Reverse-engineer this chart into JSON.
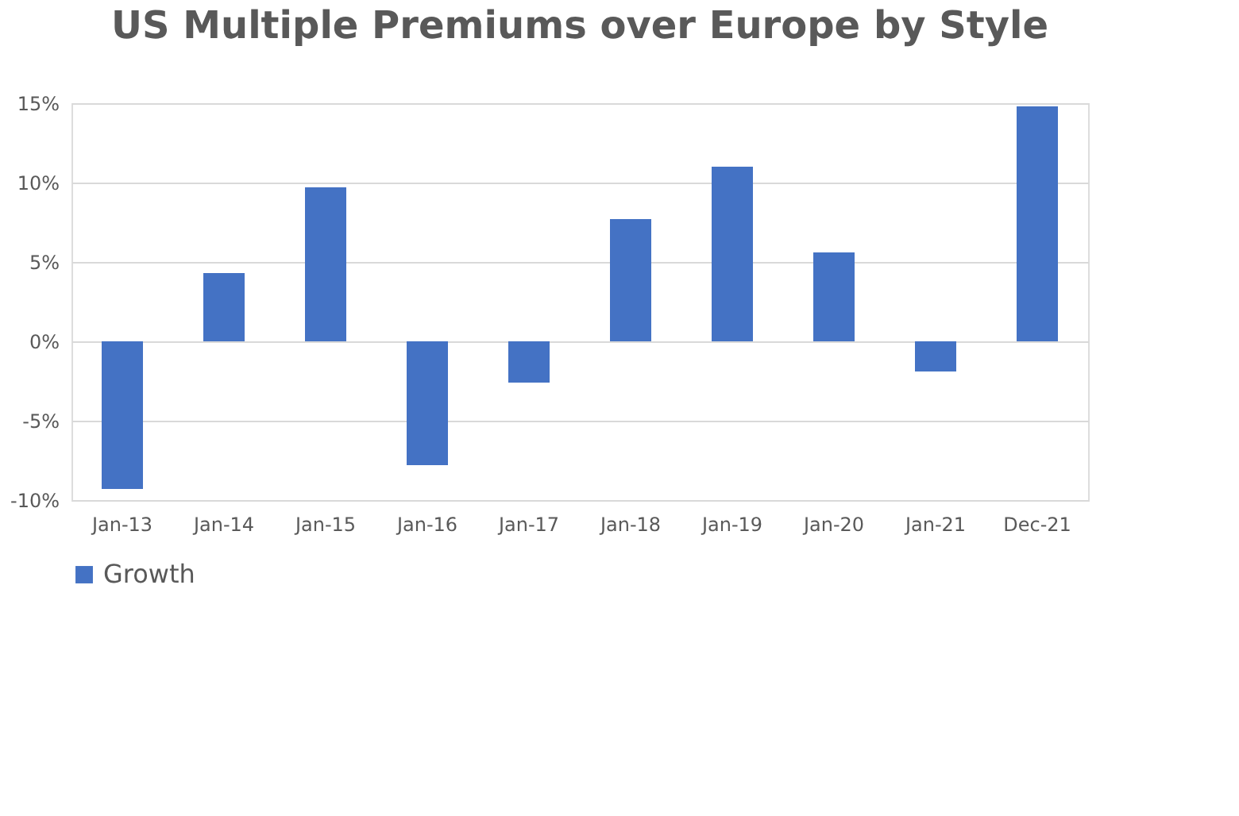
{
  "chart_data": {
    "type": "bar",
    "title": "US Multiple Premiums over Europe by Style",
    "categories": [
      "Jan-13",
      "Jan-14",
      "Jan-15",
      "Jan-16",
      "Jan-17",
      "Jan-18",
      "Jan-19",
      "Jan-20",
      "Jan-21",
      "Dec-21"
    ],
    "series": [
      {
        "name": "Growth",
        "color": "#4472c4",
        "values": [
          -9.3,
          4.3,
          9.7,
          -7.8,
          -2.6,
          7.7,
          11.0,
          5.6,
          -1.9,
          14.8
        ]
      }
    ],
    "ylim": [
      -10,
      15
    ],
    "yticks": [
      {
        "value": -10,
        "label": "-10%"
      },
      {
        "value": -5,
        "label": "-5%"
      },
      {
        "value": 0,
        "label": "0%"
      },
      {
        "value": 5,
        "label": "5%"
      },
      {
        "value": 10,
        "label": "10%"
      },
      {
        "value": 15,
        "label": "15%"
      }
    ],
    "grid": "y",
    "legend": "bottom"
  }
}
